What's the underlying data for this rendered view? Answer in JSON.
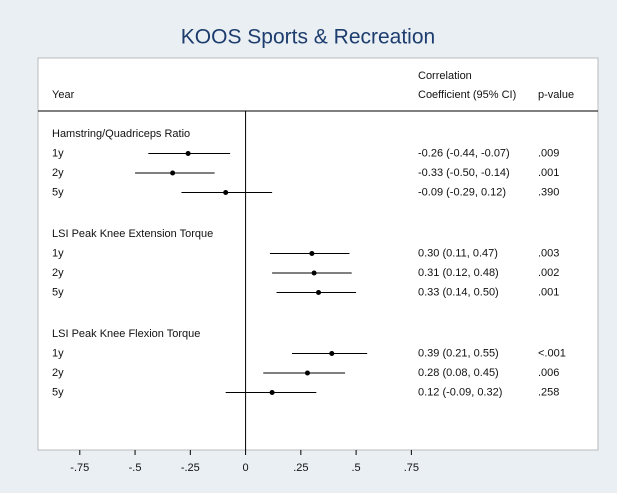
{
  "chart_data": {
    "type": "forest",
    "title": "KOOS Sports & Recreation",
    "column_headers": {
      "label": "Year",
      "estimate": [
        "Correlation",
        "Coefficient (95% CI)"
      ],
      "p_value": "p-value"
    },
    "xlim": [
      -0.93,
      0.78
    ],
    "xticks": [
      {
        "value": -0.75,
        "label": "-.75"
      },
      {
        "value": -0.5,
        "label": "-.5"
      },
      {
        "value": -0.25,
        "label": "-.25"
      },
      0,
      {
        "value": 0.25,
        "label": ".25"
      },
      {
        "value": 0.5,
        "label": ".5"
      },
      {
        "value": 0.75,
        "label": ".75"
      }
    ],
    "reference_line": 0,
    "color": "#000000",
    "series": [
      {
        "name": "Hamstring/Quadriceps Ratio",
        "categories": [
          "1y",
          "2y",
          "5y"
        ],
        "values": [
          -0.26,
          -0.33,
          -0.09
        ],
        "lower": [
          -0.44,
          -0.5,
          -0.29
        ],
        "upper": [
          -0.07,
          -0.14,
          0.12
        ],
        "value_labels": [
          "-0.26 (-0.44, -0.07)",
          "-0.33 (-0.50, -0.14)",
          "-0.09 (-0.29, 0.12)"
        ],
        "p_values": [
          ".009",
          ".001",
          ".390"
        ]
      },
      {
        "name": "LSI Peak Knee Extension Torque",
        "categories": [
          "1y",
          "2y",
          "5y"
        ],
        "values": [
          0.3,
          0.31,
          0.33
        ],
        "lower": [
          0.11,
          0.12,
          0.14
        ],
        "upper": [
          0.47,
          0.48,
          0.5
        ],
        "value_labels": [
          "0.30 (0.11, 0.47)",
          "0.31 (0.12, 0.48)",
          "0.33 (0.14, 0.50)"
        ],
        "p_values": [
          ".003",
          ".002",
          ".001"
        ]
      },
      {
        "name": "LSI Peak Knee Flexion Torque",
        "categories": [
          "1y",
          "2y",
          "5y"
        ],
        "values": [
          0.39,
          0.28,
          0.12
        ],
        "lower": [
          0.21,
          0.08,
          -0.09
        ],
        "upper": [
          0.55,
          0.45,
          0.32
        ],
        "value_labels": [
          "0.39 (0.21, 0.55)",
          "0.28 (0.08, 0.45)",
          "0.12 (-0.09, 0.32)"
        ],
        "p_values": [
          "<.001",
          ".006",
          ".258"
        ]
      }
    ]
  }
}
